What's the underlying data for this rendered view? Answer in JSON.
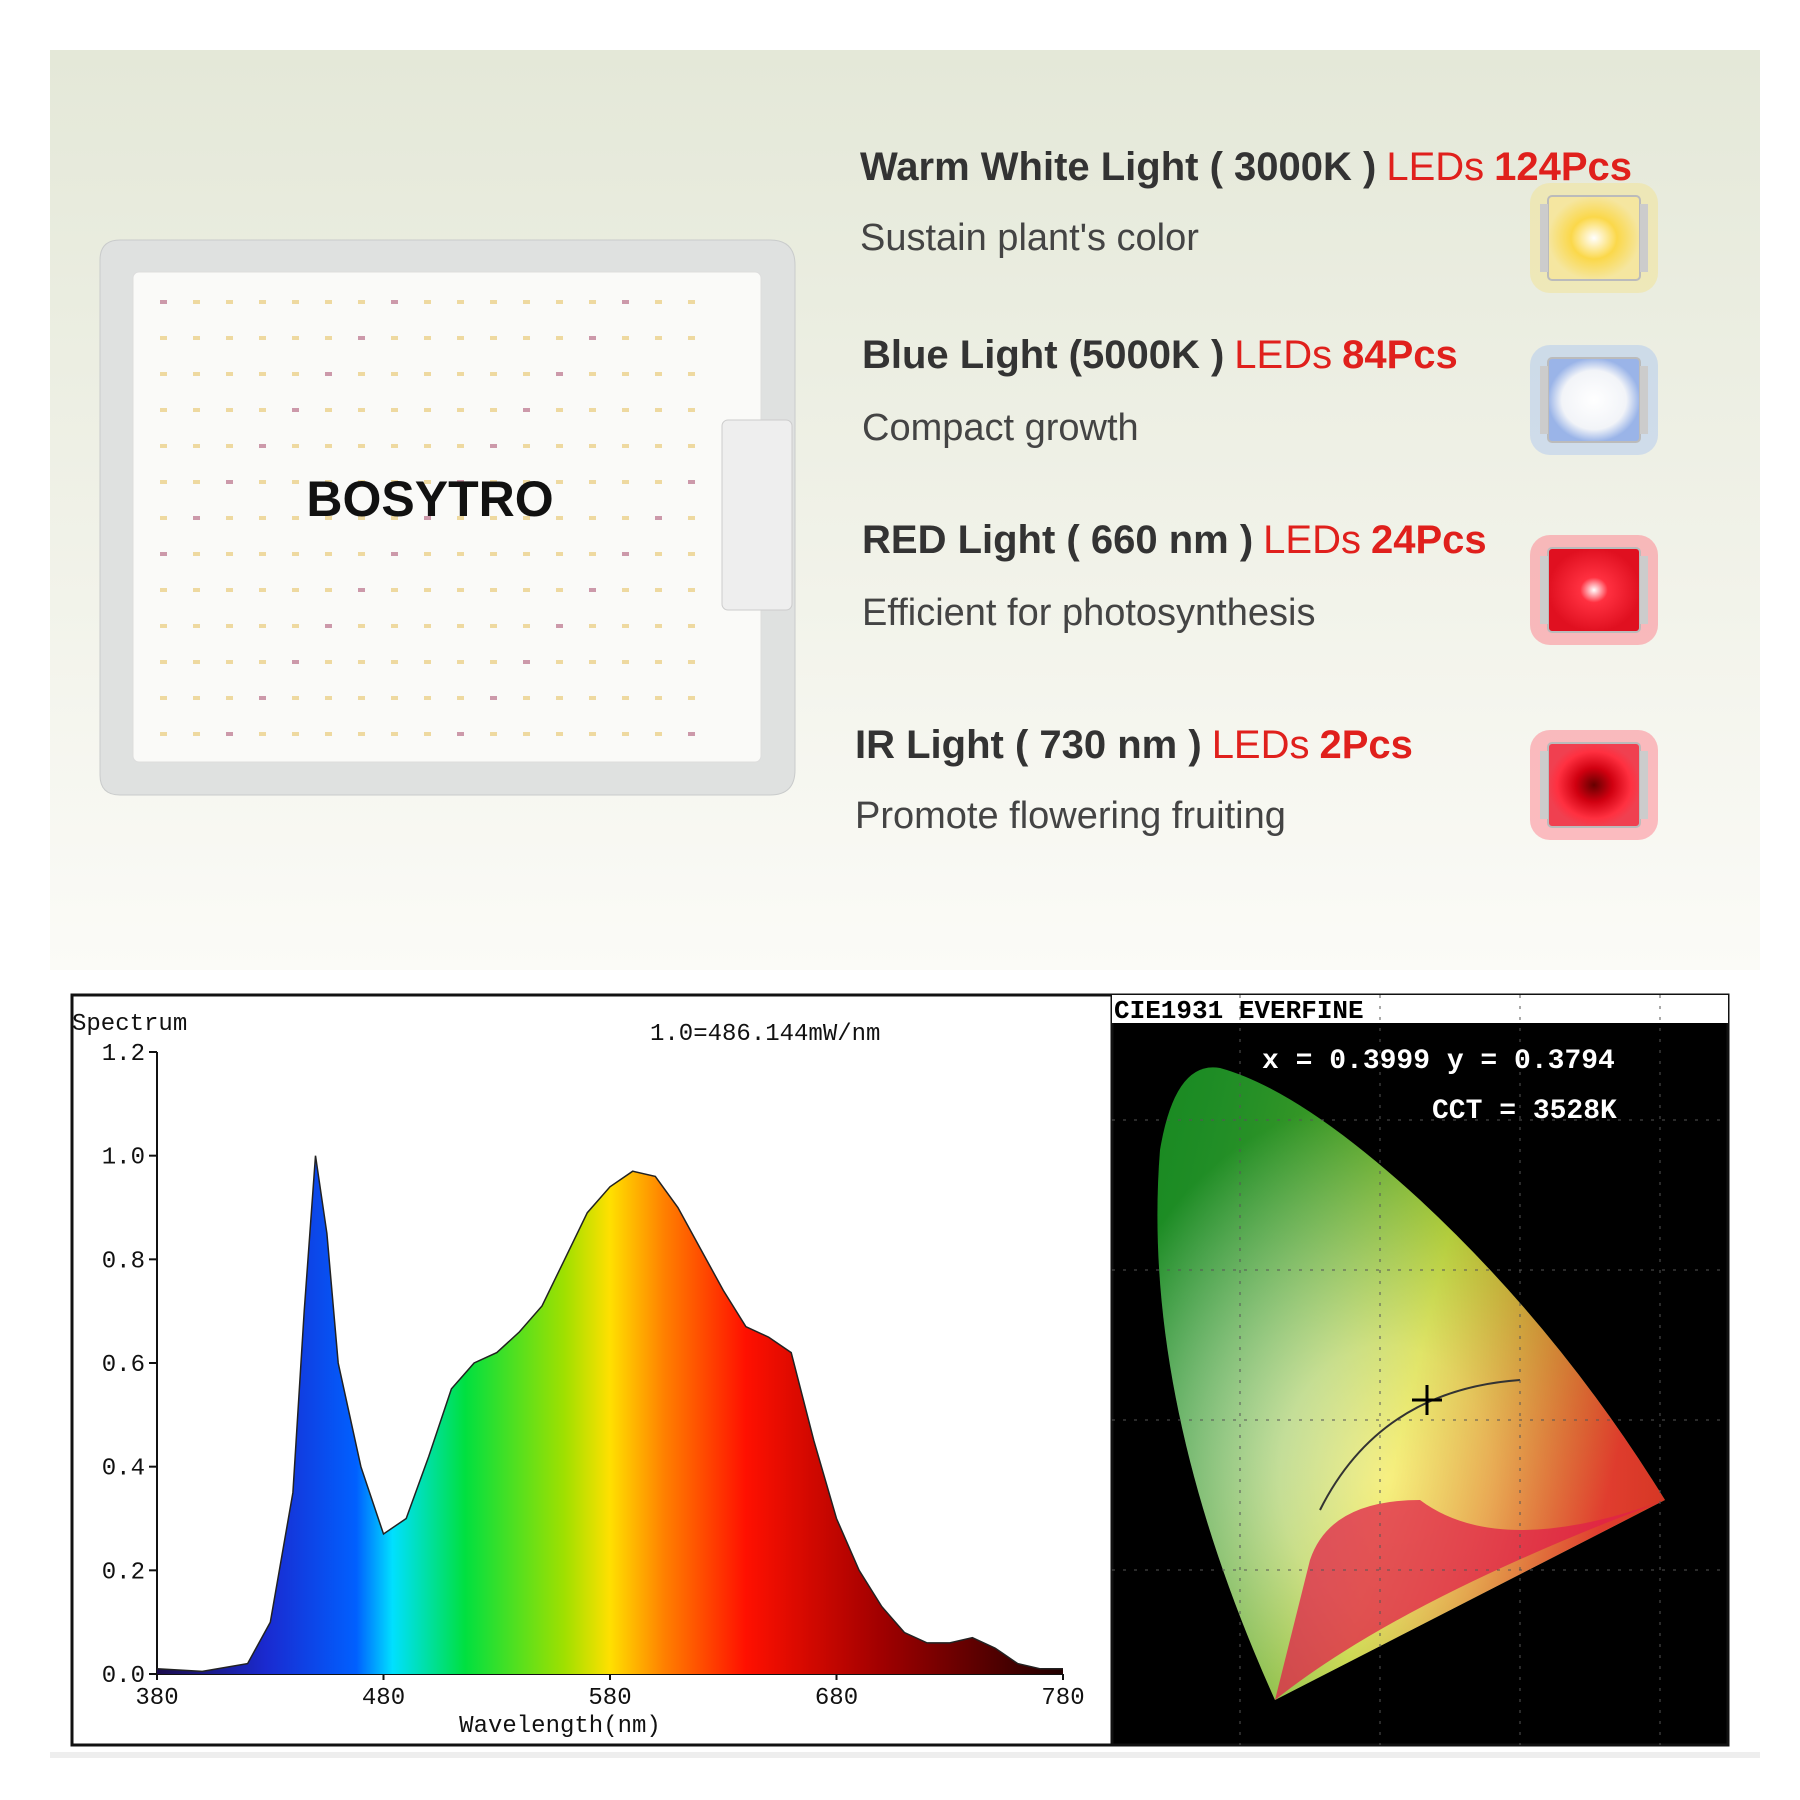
{
  "brand": "BOSYTRO",
  "features": [
    {
      "name": "Warm White Light ( 3000K )",
      "leds": "LEDs",
      "count": "124Pcs",
      "desc": "Sustain plant's color"
    },
    {
      "name": "Blue Light (5000K )",
      "leds": "LEDs",
      "count": "84Pcs",
      "desc": "Compact growth"
    },
    {
      "name": "RED Light ( 660 nm )",
      "leds": "LEDs",
      "count": "24Pcs",
      "desc": "Efficient for photosynthesis"
    },
    {
      "name": "IR Light ( 730 nm )",
      "leds": "LEDs",
      "count": "2Pcs",
      "desc": "Promote flowering fruiting"
    }
  ],
  "chart_data": {
    "type": "area",
    "title": "Spectrum",
    "annotation": "1.0=486.144mW/nm",
    "xlabel": "Wavelength(nm)",
    "x": [
      380,
      400,
      420,
      430,
      440,
      445,
      450,
      455,
      460,
      470,
      480,
      490,
      500,
      510,
      520,
      530,
      540,
      550,
      560,
      570,
      580,
      590,
      600,
      610,
      620,
      630,
      640,
      650,
      660,
      670,
      680,
      690,
      700,
      710,
      720,
      730,
      740,
      750,
      760,
      770,
      780
    ],
    "values": [
      0.01,
      0.005,
      0.02,
      0.1,
      0.35,
      0.7,
      1.0,
      0.85,
      0.6,
      0.4,
      0.27,
      0.3,
      0.42,
      0.55,
      0.6,
      0.62,
      0.66,
      0.71,
      0.8,
      0.89,
      0.94,
      0.97,
      0.96,
      0.9,
      0.82,
      0.74,
      0.67,
      0.65,
      0.62,
      0.45,
      0.3,
      0.2,
      0.13,
      0.08,
      0.06,
      0.06,
      0.07,
      0.05,
      0.02,
      0.01,
      0.01
    ],
    "xlim": [
      380,
      780
    ],
    "xticks": [
      380,
      480,
      580,
      680,
      780
    ],
    "ylim": [
      0,
      1.2
    ],
    "yticks": [
      {
        "value": 0,
        "label": "0.0"
      },
      0.2,
      0.4,
      0.6,
      0.8,
      {
        "value": 1,
        "label": "1.0"
      },
      1.2
    ]
  },
  "cie": {
    "title": "CIE1931 EVERFINE",
    "coordinates": "x = 0.3999 y = 0.3794",
    "cct": "CCT = 3528K"
  }
}
